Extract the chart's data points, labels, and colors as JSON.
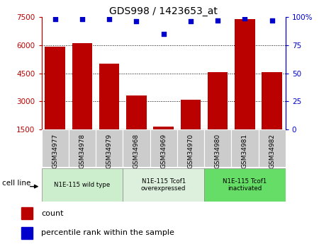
{
  "title": "GDS998 / 1423653_at",
  "samples": [
    "GSM34977",
    "GSM34978",
    "GSM34979",
    "GSM34968",
    "GSM34969",
    "GSM34970",
    "GSM34980",
    "GSM34981",
    "GSM34982"
  ],
  "counts": [
    5900,
    6100,
    5000,
    3300,
    1650,
    3100,
    4550,
    7400,
    4550
  ],
  "percentiles": [
    98,
    98,
    98,
    96,
    85,
    96,
    97,
    99,
    97
  ],
  "ylim_left": [
    1500,
    7500
  ],
  "ylim_right": [
    0,
    100
  ],
  "yticks_left": [
    1500,
    3000,
    4500,
    6000,
    7500
  ],
  "yticks_right": [
    0,
    25,
    50,
    75,
    100
  ],
  "bar_color": "#bb0000",
  "dot_color": "#0000cc",
  "grid_lines": [
    3000,
    4500,
    6000
  ],
  "cell_line_groups": [
    {
      "label": "N1E-115 wild type",
      "start": 0,
      "end": 3,
      "color": "#cceecc"
    },
    {
      "label": "N1E-115 Tcof1\noverexpressed",
      "start": 3,
      "end": 6,
      "color": "#ddf0dd"
    },
    {
      "label": "N1E-115 Tcof1\ninactivated",
      "start": 6,
      "end": 9,
      "color": "#66dd66"
    }
  ],
  "tick_label_bg": "#cccccc",
  "legend_count_label": "count",
  "legend_pct_label": "percentile rank within the sample",
  "cell_line_label": "cell line"
}
